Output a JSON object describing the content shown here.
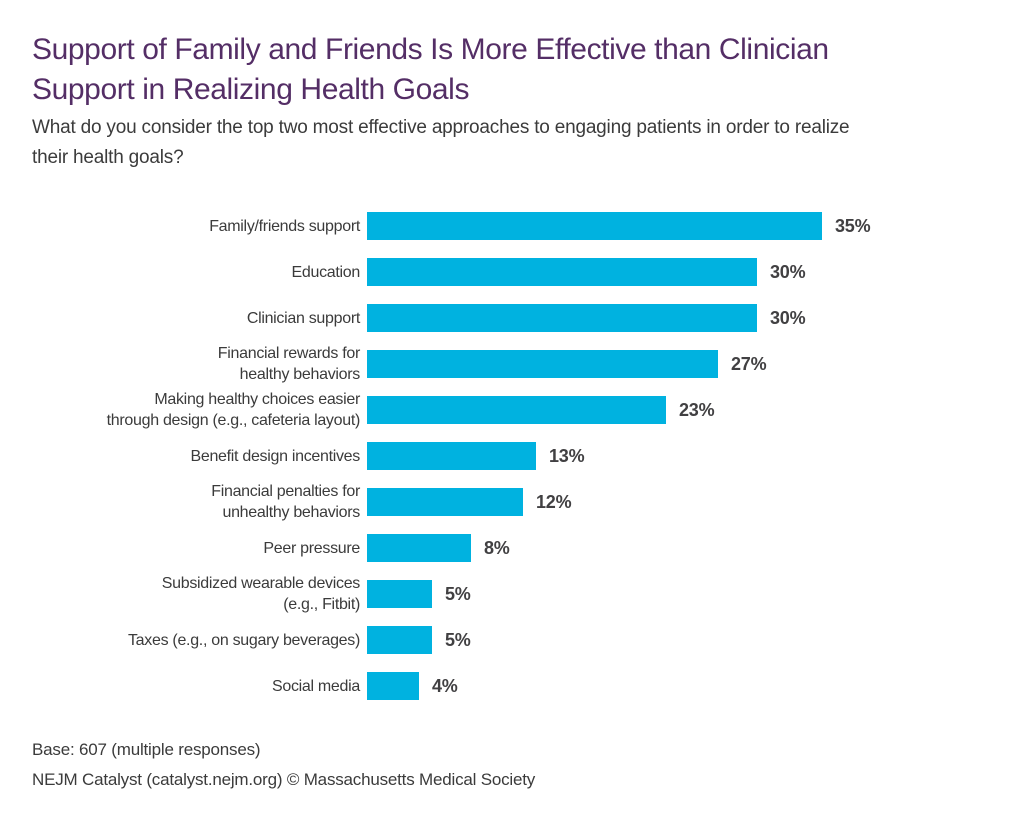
{
  "header": {
    "title_lines": [
      "Support of Family and Friends Is More Effective than Clinician",
      "Support in Realizing Health Goals"
    ],
    "subtitle_lines": [
      "What do you consider the top two most effective approaches to engaging patients in order to realize",
      "their health goals?"
    ]
  },
  "chart_data": {
    "type": "bar",
    "orientation": "horizontal",
    "title": "Support of Family and Friends Is More Effective than Clinician Support in Realizing Health Goals",
    "subtitle": "What do you consider the top two most effective approaches to engaging patients in order to realize their health goals?",
    "unit": "%",
    "xlim": [
      0,
      40
    ],
    "grid": false,
    "legend": false,
    "value_labels": "end-of-bar",
    "bar_color": "#00B2E0",
    "categories": [
      "Family/friends support",
      "Education",
      "Clinician support",
      "Financial rewards for healthy behaviors",
      "Making healthy choices easier through design (e.g., cafeteria layout)",
      "Benefit design incentives",
      "Financial penalties for unhealthy behaviors",
      "Peer pressure",
      "Subsidized wearable devices (e.g., Fitbit)",
      "Taxes (e.g., on sugary beverages)",
      "Social media"
    ],
    "values": [
      35,
      30,
      30,
      27,
      23,
      13,
      12,
      8,
      5,
      5,
      4
    ],
    "rows": [
      {
        "label_lines": [
          "Family/friends support"
        ],
        "value": 35
      },
      {
        "label_lines": [
          "Education"
        ],
        "value": 30
      },
      {
        "label_lines": [
          "Clinician support"
        ],
        "value": 30
      },
      {
        "label_lines": [
          "Financial rewards for",
          "healthy behaviors"
        ],
        "value": 27
      },
      {
        "label_lines": [
          "Making healthy choices easier",
          "through design (e.g., cafeteria layout)"
        ],
        "value": 23
      },
      {
        "label_lines": [
          "Benefit design incentives"
        ],
        "value": 13
      },
      {
        "label_lines": [
          "Financial penalties for",
          "unhealthy behaviors"
        ],
        "value": 12
      },
      {
        "label_lines": [
          "Peer pressure"
        ],
        "value": 8
      },
      {
        "label_lines": [
          "Subsidized wearable devices",
          "(e.g., Fitbit)"
        ],
        "value": 5
      },
      {
        "label_lines": [
          "Taxes (e.g., on sugary beverages)"
        ],
        "value": 5
      },
      {
        "label_lines": [
          "Social media"
        ],
        "value": 4
      }
    ]
  },
  "footer": {
    "base_note": "Base: 607 (multiple responses)",
    "source_note": "NEJM Catalyst (catalyst.nejm.org) © Massachusetts Medical Society"
  },
  "colors": {
    "title_purple": "#542E66",
    "bar_cyan": "#00B2E0",
    "body_text": "#3B3B3B",
    "value_text": "#414042"
  }
}
